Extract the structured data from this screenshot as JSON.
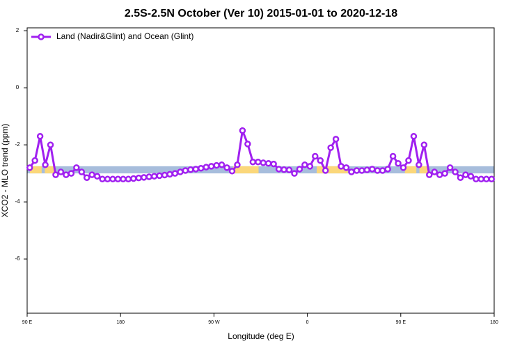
{
  "chart_data": {
    "type": "line",
    "title": "2.5S-2.5N October (Ver 10)   2015-01-01 to 2020-12-18",
    "x_label": "Longitude (deg E)",
    "y_label": "XCO2 - MLO trend (ppm)",
    "xlim": [
      90,
      540
    ],
    "ylim": [
      -7.9,
      2.1
    ],
    "xticks": [
      {
        "value": 90,
        "label": "90 E"
      },
      180,
      {
        "value": 270,
        "label": "90 W"
      },
      {
        "value": 360,
        "label": "0"
      },
      {
        "value": 450,
        "label": "90 E"
      },
      {
        "value": 540,
        "label": "180"
      }
    ],
    "yticks": [
      -6,
      -4,
      -2,
      0,
      2
    ],
    "legend": "top-left",
    "bands": [
      {
        "color": "#a7bddc",
        "xlim": [
          90,
          540
        ],
        "ylim": [
          -3.0,
          -2.75
        ]
      },
      {
        "color": "#fbd77a",
        "xlim": [
          92.7,
          104
        ],
        "ylim": [
          -3.0,
          -2.75
        ]
      },
      {
        "color": "#fbd77a",
        "xlim": [
          107,
          117.5
        ],
        "ylim": [
          -3.0,
          -2.75
        ]
      },
      {
        "color": "#fbd77a",
        "xlim": [
          288.5,
          313
        ],
        "ylim": [
          -3.0,
          -2.75
        ]
      },
      {
        "color": "#fbd77a",
        "xlim": [
          369,
          399
        ],
        "ylim": [
          -3.0,
          -2.75
        ]
      },
      {
        "color": "#fbd77a",
        "xlim": [
          454,
          465
        ],
        "ylim": [
          -3.0,
          -2.75
        ]
      },
      {
        "color": "#fbd77a",
        "xlim": [
          468,
          476
        ],
        "ylim": [
          -3.0,
          -2.75
        ]
      }
    ],
    "x": [
      92.5,
      97.5,
      102.5,
      107.5,
      112.5,
      117.5,
      122.5,
      127.5,
      132.5,
      137.5,
      142.5,
      147.5,
      152.5,
      157.5,
      162.5,
      167.5,
      172.5,
      177.5,
      182.5,
      187.5,
      192.5,
      197.5,
      202.5,
      207.5,
      212.5,
      217.5,
      222.5,
      227.5,
      232.5,
      237.5,
      242.5,
      247.5,
      252.5,
      257.5,
      262.5,
      267.5,
      272.5,
      277.5,
      282.5,
      287.5,
      292.5,
      297.5,
      302.5,
      307.5,
      312.5,
      317.5,
      322.5,
      327.5,
      332.5,
      337.5,
      342.5,
      347.5,
      352.5,
      357.5,
      362.5,
      367.5,
      372.5,
      377.5,
      382.5,
      387.5,
      392.5,
      397.5,
      402.5,
      407.5,
      412.5,
      417.5,
      422.5,
      427.5,
      432.5,
      437.5,
      442.5,
      447.5,
      452.5,
      457.5,
      462.5,
      467.5,
      472.5,
      477.5,
      482.5,
      487.5,
      492.5,
      497.5,
      502.5,
      507.5,
      512.5,
      517.5,
      522.5,
      527.5,
      532.5,
      537.5
    ],
    "series": [
      {
        "name": "Land (Nadir&Glint) and Ocean (Glint)",
        "color": "#a020f0",
        "values": [
          -2.8,
          -2.55,
          -1.7,
          -2.7,
          -2.0,
          -3.05,
          -2.95,
          -3.05,
          -3.0,
          -2.8,
          -2.95,
          -3.15,
          -3.05,
          -3.1,
          -3.2,
          -3.2,
          -3.2,
          -3.2,
          -3.2,
          -3.2,
          -3.18,
          -3.16,
          -3.14,
          -3.12,
          -3.1,
          -3.08,
          -3.06,
          -3.03,
          -3.0,
          -2.95,
          -2.9,
          -2.87,
          -2.85,
          -2.82,
          -2.78,
          -2.75,
          -2.72,
          -2.7,
          -2.8,
          -2.92,
          -2.7,
          -1.5,
          -1.97,
          -2.6,
          -2.6,
          -2.63,
          -2.65,
          -2.67,
          -2.85,
          -2.87,
          -2.88,
          -3.0,
          -2.85,
          -2.7,
          -2.75,
          -2.4,
          -2.55,
          -2.9,
          -2.1,
          -1.8,
          -2.75,
          -2.8,
          -2.95,
          -2.9,
          -2.9,
          -2.88,
          -2.85,
          -2.9,
          -2.9,
          -2.85,
          -2.4,
          -2.65,
          -2.8,
          -2.55,
          -1.7,
          -2.7,
          -2.0,
          -3.05,
          -2.95,
          -3.05,
          -3.0,
          -2.8,
          -2.95,
          -3.15,
          -3.05,
          -3.1,
          -3.2,
          -3.2,
          -3.2,
          -3.2
        ]
      }
    ]
  }
}
